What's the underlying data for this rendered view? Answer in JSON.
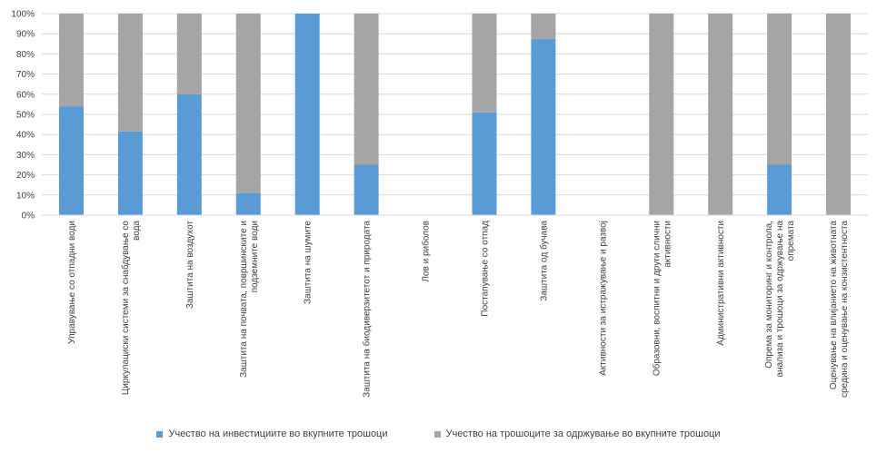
{
  "chart_data": {
    "type": "bar",
    "stacked": true,
    "percent": true,
    "y_ticks": [
      "0%",
      "10%",
      "20%",
      "30%",
      "40%",
      "50%",
      "60%",
      "70%",
      "80%",
      "90%",
      "100%"
    ],
    "ylim": [
      0,
      100
    ],
    "grid": true,
    "legend_position": "bottom",
    "categories": [
      [
        "Управување со отпадни води"
      ],
      [
        "Циркулациски системи за снабдување со",
        "вода"
      ],
      [
        "Заштита на воздухот"
      ],
      [
        "Заштита на почвата, површинските и",
        "подземните води"
      ],
      [
        "Заштита на шумите"
      ],
      [
        "Заштита на биодиверзитетот и природата"
      ],
      [
        "Лов и риболов"
      ],
      [
        "Постапување со отпад"
      ],
      [
        "Заштита од бучава"
      ],
      [
        "Активности за истражување и развој"
      ],
      [
        "Образовни, воспитни и други слични",
        "активности"
      ],
      [
        "Административни активности"
      ],
      [
        "Опрема за мониторинг и контрола,",
        "анализа и трошоци за одржување на",
        "опремата"
      ],
      [
        "Оценување на влијанието на животната",
        "средина и оценување на конзистентноста"
      ]
    ],
    "series": [
      {
        "name": "Учество на инвестициите во вкупните трошоци",
        "color": "#5b9bd5",
        "values": [
          54,
          41.5,
          60,
          11,
          100,
          25,
          0,
          51,
          87.5,
          0,
          0,
          0,
          25,
          0
        ]
      },
      {
        "name": "Учество на трошоците за одржување во вкупните трошоци",
        "color": "#a5a5a5",
        "values": [
          46,
          58.5,
          40,
          89,
          0,
          75,
          0,
          49,
          12.5,
          0,
          100,
          100,
          75,
          100
        ]
      }
    ]
  }
}
